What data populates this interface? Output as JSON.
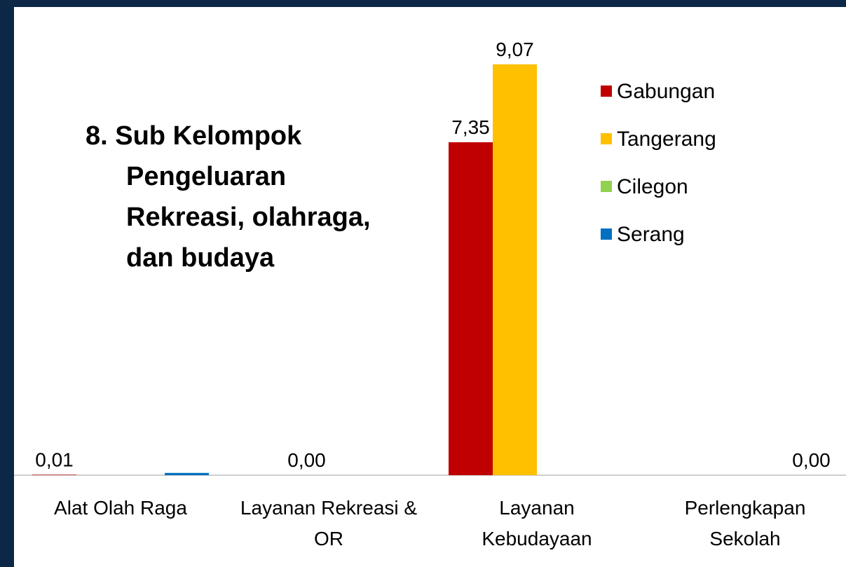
{
  "chart_data": {
    "type": "bar",
    "title": "8. Sub Kelompok Pengeluaran Rekreasi, olahraga, dan budaya",
    "categories": [
      "Alat Olah Raga",
      "Layanan Rekreasi & OR",
      "Layanan Kebudayaan",
      "Perlengkapan Sekolah"
    ],
    "series": [
      {
        "name": "Gabungan",
        "color": "#c00000",
        "values": [
          0.01,
          null,
          7.35,
          null
        ],
        "value_labels": [
          "0,01",
          null,
          "7,35",
          null
        ]
      },
      {
        "name": "Tangerang",
        "color": "#ffc000",
        "values": [
          null,
          0,
          9.07,
          null
        ],
        "value_labels": [
          null,
          "0,00",
          "9,07",
          null
        ]
      },
      {
        "name": "Cilegon",
        "color": "#92d050",
        "values": [
          null,
          null,
          null,
          null
        ]
      },
      {
        "name": "Serang",
        "color": "#0070c0",
        "values": [
          0.05,
          null,
          null,
          0
        ],
        "value_labels": [
          null,
          null,
          null,
          "0,00"
        ]
      }
    ],
    "ylim": [
      0,
      9.5
    ],
    "legend": "right"
  }
}
